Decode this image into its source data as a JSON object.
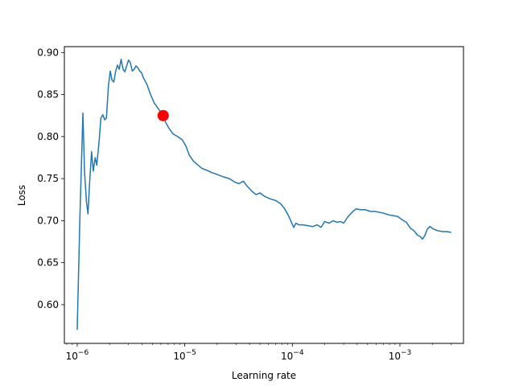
{
  "chart_data": {
    "type": "line",
    "xlabel": "Learning rate",
    "ylabel": "Loss",
    "x_scale": "log",
    "xlim": [
      7.6e-07,
      0.0039
    ],
    "ylim": [
      0.554,
      0.907
    ],
    "x_ticks": [
      {
        "value": 1e-06,
        "base": "10",
        "exp": "−6"
      },
      {
        "value": 1e-05,
        "base": "10",
        "exp": "−5"
      },
      {
        "value": 0.0001,
        "base": "10",
        "exp": "−4"
      },
      {
        "value": 0.001,
        "base": "10",
        "exp": "−3"
      }
    ],
    "y_ticks": [
      0.6,
      0.65,
      0.7,
      0.75,
      0.8,
      0.85,
      0.9
    ],
    "y_tick_labels": [
      "0.60",
      "0.65",
      "0.70",
      "0.75",
      "0.80",
      "0.85",
      "0.90"
    ],
    "grid": false,
    "line_color": "#1f77b4",
    "marker_color": "#ff0000",
    "series": [
      {
        "points": [
          [
            1e-06,
            0.57
          ],
          [
            1.06e-06,
            0.705
          ],
          [
            1.13e-06,
            0.828
          ],
          [
            1.17e-06,
            0.758
          ],
          [
            1.22e-06,
            0.722
          ],
          [
            1.26e-06,
            0.708
          ],
          [
            1.3e-06,
            0.742
          ],
          [
            1.36e-06,
            0.782
          ],
          [
            1.41e-06,
            0.759
          ],
          [
            1.47e-06,
            0.775
          ],
          [
            1.52e-06,
            0.766
          ],
          [
            1.6e-06,
            0.795
          ],
          [
            1.66e-06,
            0.822
          ],
          [
            1.73e-06,
            0.826
          ],
          [
            1.8e-06,
            0.82
          ],
          [
            1.87e-06,
            0.822
          ],
          [
            1.95e-06,
            0.86
          ],
          [
            2.03e-06,
            0.878
          ],
          [
            2.11e-06,
            0.867
          ],
          [
            2.19e-06,
            0.865
          ],
          [
            2.28e-06,
            0.878
          ],
          [
            2.37e-06,
            0.885
          ],
          [
            2.46e-06,
            0.88
          ],
          [
            2.56e-06,
            0.892
          ],
          [
            2.67e-06,
            0.88
          ],
          [
            2.77e-06,
            0.877
          ],
          [
            2.88e-06,
            0.884
          ],
          [
            3e-06,
            0.891
          ],
          [
            3.12e-06,
            0.888
          ],
          [
            3.25e-06,
            0.878
          ],
          [
            3.38e-06,
            0.88
          ],
          [
            3.52e-06,
            0.884
          ],
          [
            3.66e-06,
            0.882
          ],
          [
            3.81e-06,
            0.878
          ],
          [
            3.96e-06,
            0.876
          ],
          [
            4.12e-06,
            0.87
          ],
          [
            4.45e-06,
            0.862
          ],
          [
            4.81e-06,
            0.85
          ],
          [
            5.2e-06,
            0.84
          ],
          [
            5.62e-06,
            0.834
          ],
          [
            6.2e-06,
            0.826
          ],
          [
            6.7e-06,
            0.816
          ],
          [
            7.2e-06,
            0.809
          ],
          [
            7.8e-06,
            0.803
          ],
          [
            8.6e-06,
            0.8
          ],
          [
            9.5e-06,
            0.796
          ],
          [
            1.03e-05,
            0.788
          ],
          [
            1.1e-05,
            0.778
          ],
          [
            1.2e-05,
            0.771
          ],
          [
            1.3e-05,
            0.767
          ],
          [
            1.45e-05,
            0.762
          ],
          [
            1.6e-05,
            0.76
          ],
          [
            1.8e-05,
            0.757
          ],
          [
            2e-05,
            0.755
          ],
          [
            2.3e-05,
            0.752
          ],
          [
            2.6e-05,
            0.75
          ],
          [
            2.9e-05,
            0.746
          ],
          [
            3.2e-05,
            0.744
          ],
          [
            3.5e-05,
            0.747
          ],
          [
            3.8e-05,
            0.741
          ],
          [
            4.2e-05,
            0.735
          ],
          [
            4.6e-05,
            0.731
          ],
          [
            5e-05,
            0.733
          ],
          [
            5.5e-05,
            0.729
          ],
          [
            6.2e-05,
            0.726
          ],
          [
            7e-05,
            0.724
          ],
          [
            7.8e-05,
            0.72
          ],
          [
            8.5e-05,
            0.714
          ],
          [
            9.2e-05,
            0.706
          ],
          [
            9.8e-05,
            0.698
          ],
          [
            0.000103,
            0.692
          ],
          [
            0.000108,
            0.697
          ],
          [
            0.000115,
            0.695
          ],
          [
            0.000125,
            0.695
          ],
          [
            0.00014,
            0.694
          ],
          [
            0.000155,
            0.693
          ],
          [
            0.00017,
            0.695
          ],
          [
            0.000185,
            0.692
          ],
          [
            0.0002,
            0.699
          ],
          [
            0.00022,
            0.697
          ],
          [
            0.00024,
            0.7
          ],
          [
            0.00026,
            0.698
          ],
          [
            0.00028,
            0.699
          ],
          [
            0.0003,
            0.697
          ],
          [
            0.00033,
            0.705
          ],
          [
            0.00036,
            0.71
          ],
          [
            0.00039,
            0.714
          ],
          [
            0.00043,
            0.713
          ],
          [
            0.00048,
            0.713
          ],
          [
            0.00053,
            0.711
          ],
          [
            0.00058,
            0.711
          ],
          [
            0.00064,
            0.71
          ],
          [
            0.0007,
            0.709
          ],
          [
            0.00078,
            0.707
          ],
          [
            0.00086,
            0.706
          ],
          [
            0.00095,
            0.705
          ],
          [
            0.00105,
            0.701
          ],
          [
            0.00115,
            0.698
          ],
          [
            0.00125,
            0.691
          ],
          [
            0.00135,
            0.688
          ],
          [
            0.00145,
            0.683
          ],
          [
            0.00155,
            0.681
          ],
          [
            0.00162,
            0.678
          ],
          [
            0.0017,
            0.682
          ],
          [
            0.0018,
            0.69
          ],
          [
            0.0019,
            0.693
          ],
          [
            0.00205,
            0.69
          ],
          [
            0.00225,
            0.688
          ],
          [
            0.0025,
            0.687
          ],
          [
            0.00275,
            0.687
          ],
          [
            0.003,
            0.686
          ]
        ]
      }
    ],
    "marker_point": {
      "x": 6.3e-06,
      "y": 0.825
    }
  }
}
